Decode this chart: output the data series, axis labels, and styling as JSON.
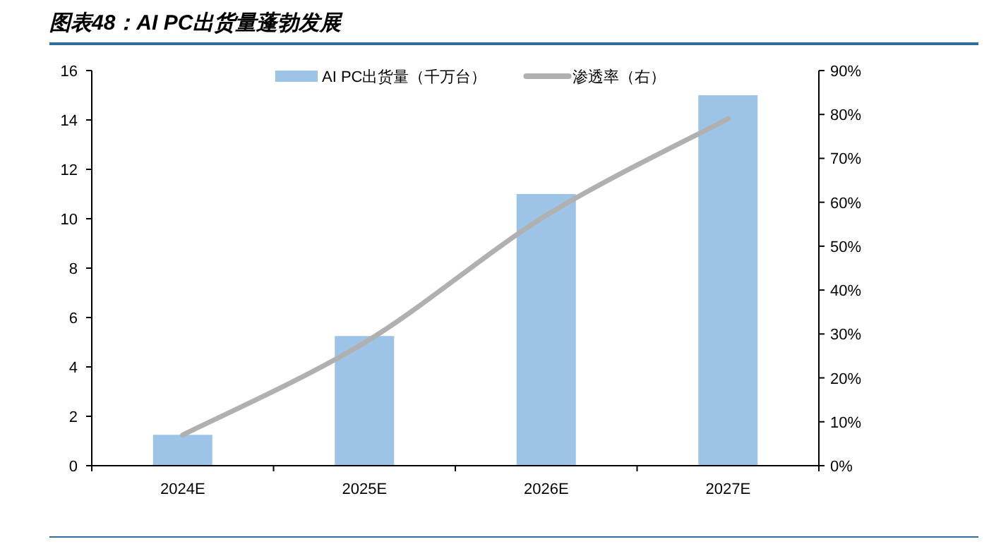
{
  "chart_data": {
    "type": "bar",
    "title": "图表48：AI PC出货量蓬勃发展",
    "categories": [
      "2024E",
      "2025E",
      "2026E",
      "2027E"
    ],
    "series": [
      {
        "name": "AI PC出货量（千万台）",
        "color": "#9dc3e6",
        "values": [
          1.25,
          5.25,
          11,
          15
        ]
      },
      {
        "name": "渗透率（右）",
        "type": "line",
        "axis": "y2",
        "color": "#b0b0b0",
        "values": [
          7,
          28,
          57,
          79
        ]
      }
    ],
    "ylim": [
      0,
      16
    ],
    "yticks": [
      0,
      2,
      4,
      6,
      8,
      10,
      12,
      14,
      16
    ],
    "y2lim": [
      0,
      90
    ],
    "y2ticks": [
      {
        "value": 0,
        "label": "0%"
      },
      {
        "value": 10,
        "label": "10%"
      },
      {
        "value": 20,
        "label": "20%"
      },
      {
        "value": 30,
        "label": "30%"
      },
      {
        "value": 40,
        "label": "40%"
      },
      {
        "value": 50,
        "label": "50%"
      },
      {
        "value": 60,
        "label": "60%"
      },
      {
        "value": 70,
        "label": "70%"
      },
      {
        "value": 80,
        "label": "80%"
      },
      {
        "value": 90,
        "label": "90%"
      }
    ],
    "legend": "top",
    "grid": false
  }
}
